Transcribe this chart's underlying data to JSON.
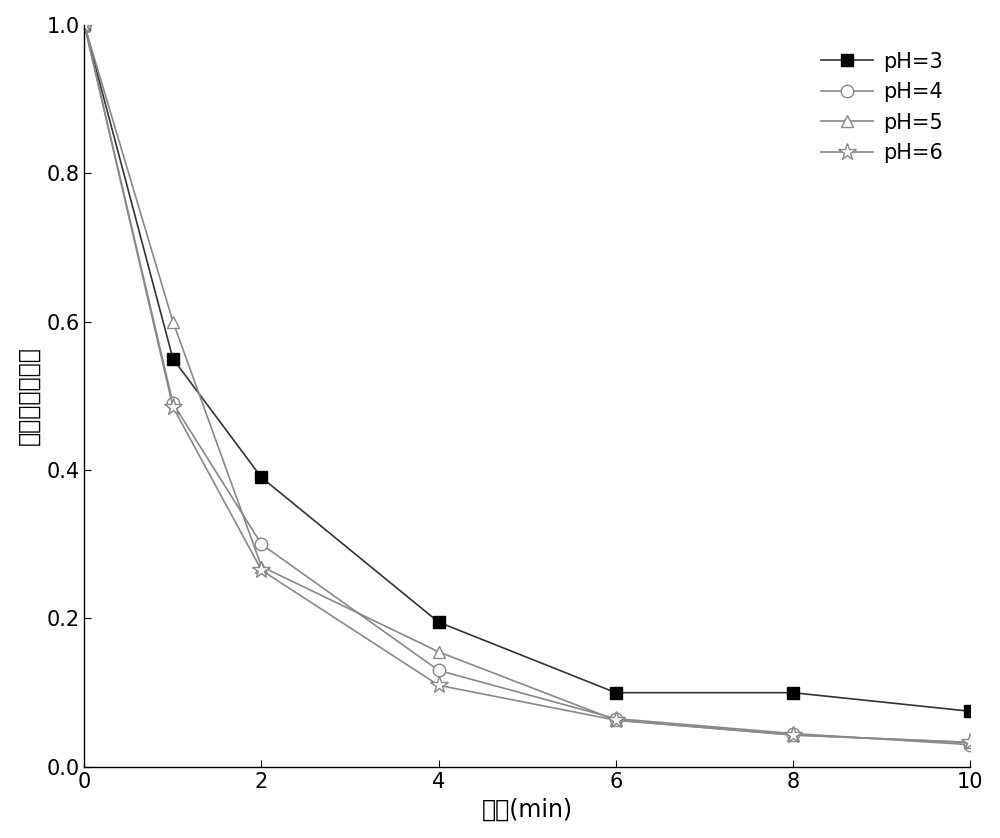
{
  "x": [
    0,
    1,
    2,
    4,
    6,
    8,
    10
  ],
  "pH3": [
    1.0,
    0.55,
    0.39,
    0.195,
    0.1,
    0.1,
    0.075
  ],
  "pH4": [
    1.0,
    0.49,
    0.3,
    0.13,
    0.065,
    0.045,
    0.03
  ],
  "pH5": [
    1.0,
    0.6,
    0.27,
    0.155,
    0.063,
    0.043,
    0.033
  ],
  "pH6": [
    1.0,
    0.485,
    0.265,
    0.11,
    0.063,
    0.043,
    0.033
  ],
  "ylabel": "总础的去除效率",
  "xlabel": "时间(min)",
  "legend_labels": [
    "pH=3",
    "pH=4",
    "pH=5",
    "pH=6"
  ],
  "line_color": "#888888",
  "ph3_color": "#333333",
  "markers": [
    "s",
    "o",
    "^",
    "*"
  ],
  "xlim": [
    0,
    10
  ],
  "ylim": [
    0.0,
    1.0
  ],
  "xticks": [
    0,
    2,
    4,
    6,
    8,
    10
  ],
  "yticks": [
    0.0,
    0.2,
    0.4,
    0.6,
    0.8,
    1.0
  ],
  "figsize": [
    10.0,
    8.38
  ],
  "dpi": 100,
  "marker_size": 9,
  "linewidth": 1.2,
  "legend_fontsize": 15,
  "axis_fontsize": 17,
  "tick_fontsize": 15
}
